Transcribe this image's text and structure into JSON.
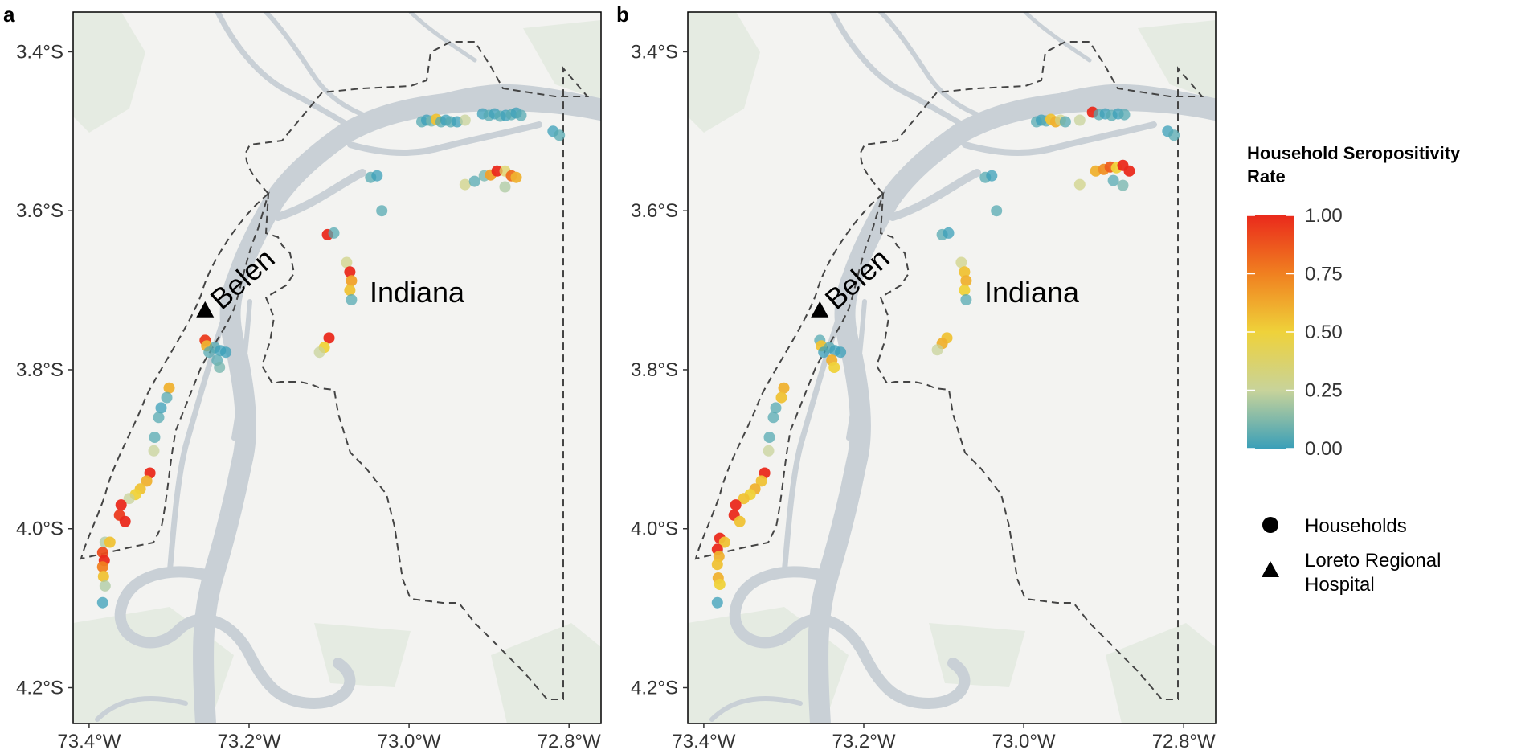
{
  "panels": [
    {
      "id": "a",
      "tag": "a",
      "regions": [
        {
          "label": "Belen",
          "lon": -73.2,
          "lat": -3.695,
          "rotate": -42
        },
        {
          "label": "Indiana",
          "lon": -72.99,
          "lat": -3.715,
          "rotate": 0
        }
      ],
      "hospital": {
        "lon": -73.255,
        "lat": -3.725
      },
      "households": [
        {
          "lon": -72.984,
          "lat": -3.488,
          "v": 0.05
        },
        {
          "lon": -72.978,
          "lat": -3.486,
          "v": 0.0
        },
        {
          "lon": -72.972,
          "lat": -3.487,
          "v": 0.1
        },
        {
          "lon": -72.966,
          "lat": -3.485,
          "v": 0.55
        },
        {
          "lon": -72.96,
          "lat": -3.488,
          "v": 0.05
        },
        {
          "lon": -72.954,
          "lat": -3.486,
          "v": 0.0
        },
        {
          "lon": -72.948,
          "lat": -3.488,
          "v": 0.05
        },
        {
          "lon": -72.94,
          "lat": -3.488,
          "v": 0.0
        },
        {
          "lon": -72.93,
          "lat": -3.486,
          "v": 0.25
        },
        {
          "lon": -72.908,
          "lat": -3.478,
          "v": 0.0
        },
        {
          "lon": -72.9,
          "lat": -3.48,
          "v": 0.05
        },
        {
          "lon": -72.893,
          "lat": -3.478,
          "v": 0.0
        },
        {
          "lon": -72.886,
          "lat": -3.481,
          "v": 0.05
        },
        {
          "lon": -72.879,
          "lat": -3.48,
          "v": 0.0
        },
        {
          "lon": -72.872,
          "lat": -3.479,
          "v": 0.05
        },
        {
          "lon": -72.866,
          "lat": -3.477,
          "v": 0.0
        },
        {
          "lon": -72.86,
          "lat": -3.48,
          "v": 0.05
        },
        {
          "lon": -72.82,
          "lat": -3.5,
          "v": 0.0
        },
        {
          "lon": -72.812,
          "lat": -3.505,
          "v": 0.05
        },
        {
          "lon": -72.93,
          "lat": -3.567,
          "v": 0.3
        },
        {
          "lon": -72.918,
          "lat": -3.563,
          "v": 0.05
        },
        {
          "lon": -72.906,
          "lat": -3.556,
          "v": 0.1
        },
        {
          "lon": -72.898,
          "lat": -3.555,
          "v": 0.65
        },
        {
          "lon": -72.89,
          "lat": -3.55,
          "v": 1.0
        },
        {
          "lon": -72.88,
          "lat": -3.55,
          "v": 0.4
        },
        {
          "lon": -72.872,
          "lat": -3.556,
          "v": 0.8
        },
        {
          "lon": -72.866,
          "lat": -3.558,
          "v": 0.6
        },
        {
          "lon": -72.88,
          "lat": -3.57,
          "v": 0.2
        },
        {
          "lon": -73.048,
          "lat": -3.558,
          "v": 0.05
        },
        {
          "lon": -73.04,
          "lat": -3.556,
          "v": 0.0
        },
        {
          "lon": -73.034,
          "lat": -3.6,
          "v": 0.05
        },
        {
          "lon": -73.102,
          "lat": -3.63,
          "v": 1.0
        },
        {
          "lon": -73.094,
          "lat": -3.628,
          "v": 0.05
        },
        {
          "lon": -73.078,
          "lat": -3.665,
          "v": 0.3
        },
        {
          "lon": -73.074,
          "lat": -3.677,
          "v": 1.0
        },
        {
          "lon": -73.072,
          "lat": -3.688,
          "v": 0.65
        },
        {
          "lon": -73.074,
          "lat": -3.7,
          "v": 0.55
        },
        {
          "lon": -73.072,
          "lat": -3.712,
          "v": 0.05
        },
        {
          "lon": -73.1,
          "lat": -3.76,
          "v": 1.0
        },
        {
          "lon": -73.106,
          "lat": -3.772,
          "v": 0.5
        },
        {
          "lon": -73.112,
          "lat": -3.778,
          "v": 0.25
        },
        {
          "lon": -73.255,
          "lat": -3.763,
          "v": 0.95
        },
        {
          "lon": -73.253,
          "lat": -3.77,
          "v": 0.6
        },
        {
          "lon": -73.25,
          "lat": -3.778,
          "v": 0.05
        },
        {
          "lon": -73.243,
          "lat": -3.772,
          "v": 0.05
        },
        {
          "lon": -73.236,
          "lat": -3.776,
          "v": 0.0
        },
        {
          "lon": -73.24,
          "lat": -3.788,
          "v": 0.05
        },
        {
          "lon": -73.237,
          "lat": -3.797,
          "v": 0.1
        },
        {
          "lon": -73.229,
          "lat": -3.778,
          "v": 0.0
        },
        {
          "lon": -73.3,
          "lat": -3.823,
          "v": 0.6
        },
        {
          "lon": -73.303,
          "lat": -3.835,
          "v": 0.05
        },
        {
          "lon": -73.31,
          "lat": -3.848,
          "v": 0.0
        },
        {
          "lon": -73.313,
          "lat": -3.86,
          "v": 0.05
        },
        {
          "lon": -73.318,
          "lat": -3.885,
          "v": 0.05
        },
        {
          "lon": -73.319,
          "lat": -3.902,
          "v": 0.25
        },
        {
          "lon": -73.324,
          "lat": -3.93,
          "v": 1.0
        },
        {
          "lon": -73.328,
          "lat": -3.94,
          "v": 0.6
        },
        {
          "lon": -73.336,
          "lat": -3.95,
          "v": 0.55
        },
        {
          "lon": -73.342,
          "lat": -3.957,
          "v": 0.5
        },
        {
          "lon": -73.35,
          "lat": -3.962,
          "v": 0.25
        },
        {
          "lon": -73.36,
          "lat": -3.97,
          "v": 1.0
        },
        {
          "lon": -73.362,
          "lat": -3.983,
          "v": 0.95
        },
        {
          "lon": -73.355,
          "lat": -3.991,
          "v": 1.0
        },
        {
          "lon": -73.38,
          "lat": -4.017,
          "v": 0.2
        },
        {
          "lon": -73.374,
          "lat": -4.017,
          "v": 0.55
        },
        {
          "lon": -73.383,
          "lat": -4.03,
          "v": 0.9
        },
        {
          "lon": -73.381,
          "lat": -4.04,
          "v": 1.0
        },
        {
          "lon": -73.383,
          "lat": -4.048,
          "v": 0.75
        },
        {
          "lon": -73.382,
          "lat": -4.06,
          "v": 0.55
        },
        {
          "lon": -73.38,
          "lat": -4.072,
          "v": 0.2
        },
        {
          "lon": -73.383,
          "lat": -4.093,
          "v": 0.0
        }
      ]
    },
    {
      "id": "b",
      "tag": "b",
      "regions": [
        {
          "label": "Belen",
          "lon": -73.2,
          "lat": -3.695,
          "rotate": -42
        },
        {
          "label": "Indiana",
          "lon": -72.99,
          "lat": -3.715,
          "rotate": 0
        }
      ],
      "hospital": {
        "lon": -73.255,
        "lat": -3.725
      },
      "households": [
        {
          "lon": -72.984,
          "lat": -3.488,
          "v": 0.05
        },
        {
          "lon": -72.978,
          "lat": -3.486,
          "v": 0.0
        },
        {
          "lon": -72.972,
          "lat": -3.487,
          "v": 0.05
        },
        {
          "lon": -72.966,
          "lat": -3.485,
          "v": 0.55
        },
        {
          "lon": -72.96,
          "lat": -3.488,
          "v": 0.6
        },
        {
          "lon": -72.954,
          "lat": -3.486,
          "v": 0.3
        },
        {
          "lon": -72.948,
          "lat": -3.488,
          "v": 0.05
        },
        {
          "lon": -72.93,
          "lat": -3.486,
          "v": 0.25
        },
        {
          "lon": -72.914,
          "lat": -3.476,
          "v": 1.0
        },
        {
          "lon": -72.906,
          "lat": -3.479,
          "v": 0.05
        },
        {
          "lon": -72.898,
          "lat": -3.478,
          "v": 0.0
        },
        {
          "lon": -72.89,
          "lat": -3.48,
          "v": 0.05
        },
        {
          "lon": -72.882,
          "lat": -3.478,
          "v": 0.0
        },
        {
          "lon": -72.874,
          "lat": -3.479,
          "v": 0.05
        },
        {
          "lon": -72.82,
          "lat": -3.5,
          "v": 0.0
        },
        {
          "lon": -72.812,
          "lat": -3.505,
          "v": 0.05
        },
        {
          "lon": -72.93,
          "lat": -3.567,
          "v": 0.3
        },
        {
          "lon": -72.91,
          "lat": -3.55,
          "v": 0.6
        },
        {
          "lon": -72.9,
          "lat": -3.548,
          "v": 0.7
        },
        {
          "lon": -72.892,
          "lat": -3.545,
          "v": 0.85
        },
        {
          "lon": -72.884,
          "lat": -3.546,
          "v": 0.5
        },
        {
          "lon": -72.876,
          "lat": -3.543,
          "v": 1.0
        },
        {
          "lon": -72.868,
          "lat": -3.55,
          "v": 1.0
        },
        {
          "lon": -72.876,
          "lat": -3.568,
          "v": 0.1
        },
        {
          "lon": -72.888,
          "lat": -3.562,
          "v": 0.05
        },
        {
          "lon": -73.048,
          "lat": -3.558,
          "v": 0.05
        },
        {
          "lon": -73.04,
          "lat": -3.556,
          "v": 0.0
        },
        {
          "lon": -73.034,
          "lat": -3.6,
          "v": 0.05
        },
        {
          "lon": -73.102,
          "lat": -3.63,
          "v": 0.05
        },
        {
          "lon": -73.094,
          "lat": -3.628,
          "v": 0.0
        },
        {
          "lon": -73.078,
          "lat": -3.665,
          "v": 0.3
        },
        {
          "lon": -73.074,
          "lat": -3.677,
          "v": 0.55
        },
        {
          "lon": -73.072,
          "lat": -3.688,
          "v": 0.6
        },
        {
          "lon": -73.074,
          "lat": -3.7,
          "v": 0.5
        },
        {
          "lon": -73.072,
          "lat": -3.712,
          "v": 0.05
        },
        {
          "lon": -73.096,
          "lat": -3.76,
          "v": 0.55
        },
        {
          "lon": -73.102,
          "lat": -3.767,
          "v": 0.6
        },
        {
          "lon": -73.108,
          "lat": -3.775,
          "v": 0.25
        },
        {
          "lon": -73.255,
          "lat": -3.763,
          "v": 0.05
        },
        {
          "lon": -73.253,
          "lat": -3.77,
          "v": 0.55
        },
        {
          "lon": -73.25,
          "lat": -3.778,
          "v": 0.0
        },
        {
          "lon": -73.243,
          "lat": -3.772,
          "v": 0.05
        },
        {
          "lon": -73.236,
          "lat": -3.776,
          "v": 0.0
        },
        {
          "lon": -73.24,
          "lat": -3.788,
          "v": 0.6
        },
        {
          "lon": -73.237,
          "lat": -3.797,
          "v": 0.5
        },
        {
          "lon": -73.229,
          "lat": -3.778,
          "v": 0.0
        },
        {
          "lon": -73.3,
          "lat": -3.823,
          "v": 0.6
        },
        {
          "lon": -73.303,
          "lat": -3.835,
          "v": 0.55
        },
        {
          "lon": -73.31,
          "lat": -3.848,
          "v": 0.05
        },
        {
          "lon": -73.313,
          "lat": -3.86,
          "v": 0.05
        },
        {
          "lon": -73.318,
          "lat": -3.885,
          "v": 0.05
        },
        {
          "lon": -73.319,
          "lat": -3.902,
          "v": 0.25
        },
        {
          "lon": -73.324,
          "lat": -3.93,
          "v": 1.0
        },
        {
          "lon": -73.328,
          "lat": -3.94,
          "v": 0.55
        },
        {
          "lon": -73.336,
          "lat": -3.95,
          "v": 0.6
        },
        {
          "lon": -73.342,
          "lat": -3.957,
          "v": 0.5
        },
        {
          "lon": -73.35,
          "lat": -3.962,
          "v": 0.55
        },
        {
          "lon": -73.36,
          "lat": -3.97,
          "v": 1.0
        },
        {
          "lon": -73.362,
          "lat": -3.983,
          "v": 1.0
        },
        {
          "lon": -73.355,
          "lat": -3.991,
          "v": 0.55
        },
        {
          "lon": -73.38,
          "lat": -4.012,
          "v": 1.0
        },
        {
          "lon": -73.374,
          "lat": -4.017,
          "v": 0.55
        },
        {
          "lon": -73.383,
          "lat": -4.026,
          "v": 1.0
        },
        {
          "lon": -73.381,
          "lat": -4.035,
          "v": 0.6
        },
        {
          "lon": -73.383,
          "lat": -4.045,
          "v": 0.55
        },
        {
          "lon": -73.382,
          "lat": -4.062,
          "v": 0.6
        },
        {
          "lon": -73.38,
          "lat": -4.07,
          "v": 0.5
        },
        {
          "lon": -73.383,
          "lat": -4.093,
          "v": 0.0
        }
      ]
    }
  ],
  "axes": {
    "lon_range": [
      -73.42,
      -72.76
    ],
    "lat_range": [
      -3.35,
      -4.245
    ],
    "x_ticks": [
      {
        "value": -73.4,
        "label": "73.4°W"
      },
      {
        "value": -73.2,
        "label": "73.2°W"
      },
      {
        "value": -73.0,
        "label": "73.0°W"
      },
      {
        "value": -72.8,
        "label": "72.8°W"
      }
    ],
    "y_ticks": [
      {
        "value": -3.4,
        "label": "3.4°S"
      },
      {
        "value": -3.6,
        "label": "3.6°S"
      },
      {
        "value": -3.8,
        "label": "3.8°S"
      },
      {
        "value": -4.0,
        "label": "4.0°S"
      },
      {
        "value": -4.2,
        "label": "4.2°S"
      }
    ]
  },
  "legend": {
    "title_line1": "Household Seropositivity",
    "title_line2": "Rate",
    "colorbar_ticks": [
      {
        "value": 1.0,
        "label": "1.00"
      },
      {
        "value": 0.75,
        "label": "0.75"
      },
      {
        "value": 0.5,
        "label": "0.50"
      },
      {
        "value": 0.25,
        "label": "0.25"
      },
      {
        "value": 0.0,
        "label": "0.00"
      }
    ],
    "color_stops": [
      "#3a9fb8",
      "#c8d39a",
      "#efd23a",
      "#f08020",
      "#ea2a1c"
    ],
    "households_label": "Households",
    "hospital_label_line1": "Loreto Regional",
    "hospital_label_line2": "Hospital"
  },
  "colors": {
    "land": "#f3f3f1",
    "green_patch": "#e5ebe2",
    "river": "#c9d0d6",
    "boundary": "#444444"
  }
}
